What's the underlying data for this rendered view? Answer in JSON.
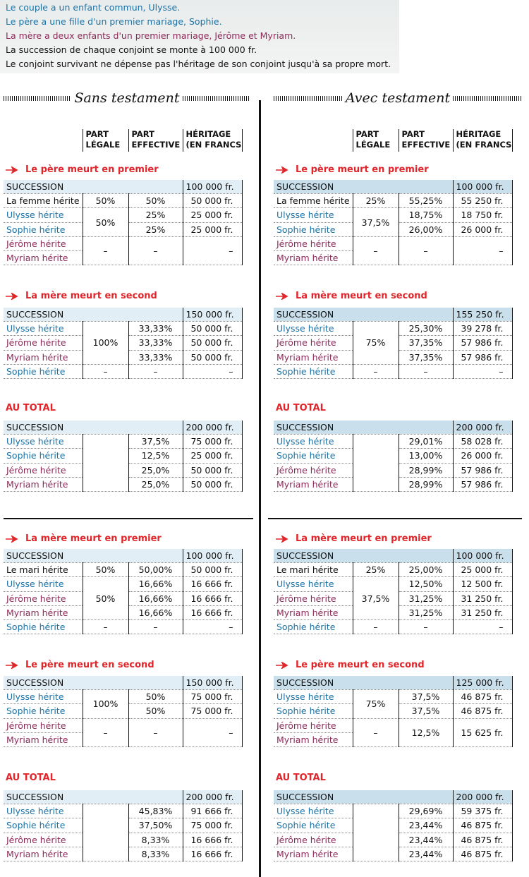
{
  "intro": [
    {
      "text": "Le couple a un enfant commun, Ulysse.",
      "color": "#1a72a6"
    },
    {
      "text": "Le père a une fille d'un premier mariage, Sophie.",
      "color": "#1a72a6"
    },
    {
      "text": "La mère a deux enfants d'un premier mariage, Jérôme et Myriam.",
      "color": "#8c2a5a"
    },
    {
      "text": "La succession de chaque conjoint se monte à 100 000 fr.",
      "color": "#111111"
    },
    {
      "text": "Le conjoint survivant ne dépense pas l'héritage de son conjoint jusqu'à sa propre mort.",
      "color": "#111111"
    }
  ],
  "columns": [
    {
      "title": "Sans testament",
      "header": [
        [
          "PART",
          "LÉGALE"
        ],
        [
          "PART",
          "EFFECTIVE"
        ],
        [
          "HÉRITAGE",
          "(EN FRANCS)"
        ]
      ],
      "succession_color": "#e2eef5",
      "sections": [
        {
          "heading": "Le père meurt en premier",
          "succession": {
            "label": "SUCCESSION",
            "amount": "100 000 fr."
          },
          "rows": [
            [
              "La femme hérite",
              "50%",
              "50%",
              "50 000 fr."
            ],
            [
              "Ulysse hérite",
              "50%",
              "25%",
              "25 000 fr."
            ],
            [
              "Sophie hérite",
              null,
              "25%",
              "25 000 fr."
            ],
            [
              "Jérôme hérite",
              "–",
              "–",
              "–"
            ],
            [
              "Myriam hérite",
              null,
              null,
              null
            ]
          ],
          "row_colors": [
            "#111111",
            "#1a72a6",
            "#1a72a6",
            "#8c2a5a",
            "#8c2a5a"
          ]
        },
        {
          "heading": "La mère meurt en second",
          "succession": {
            "label": "SUCCESSION",
            "amount": "150 000 fr."
          },
          "rows": [
            [
              "Ulysse hérite",
              "100%",
              "33,33%",
              "50 000 fr."
            ],
            [
              "Jérôme hérite",
              null,
              "33,33%",
              "50 000 fr."
            ],
            [
              "Myriam hérite",
              null,
              "33,33%",
              "50 000 fr."
            ],
            [
              "Sophie hérite",
              "–",
              "–",
              "–"
            ]
          ],
          "row_colors": [
            "#1a72a6",
            "#8c2a5a",
            "#8c2a5a",
            "#1a72a6"
          ]
        },
        {
          "heading": "AU TOTAL",
          "succession": {
            "label": "SUCCESSION",
            "amount": "200 000 fr."
          },
          "rows": [
            [
              "Ulysse hérite",
              null,
              "37,5%",
              "75 000 fr."
            ],
            [
              "Sophie hérite",
              null,
              "12,5%",
              "25 000 fr."
            ],
            [
              "Jérôme hérite",
              null,
              "25,0%",
              "50 000 fr."
            ],
            [
              "Myriam hérite",
              null,
              "25,0%",
              "50 000 fr."
            ]
          ],
          "row_colors": [
            "#1a72a6",
            "#1a72a6",
            "#8c2a5a",
            "#8c2a5a"
          ]
        },
        {
          "heading": "La mère meurt en premier",
          "succession": {
            "label": "SUCCESSION",
            "amount": "100 000 fr."
          },
          "rows": [
            [
              "Le mari hérite",
              "50%",
              "50,00%",
              "50 000 fr."
            ],
            [
              "Ulysse hérite",
              "50%",
              "16,66%",
              "16 666 fr."
            ],
            [
              "Jérôme hérite",
              null,
              "16,66%",
              "16 666 fr."
            ],
            [
              "Myriam hérite",
              null,
              "16,66%",
              "16 666 fr."
            ],
            [
              "Sophie hérite",
              "–",
              "–",
              "–"
            ]
          ],
          "row_colors": [
            "#111111",
            "#1a72a6",
            "#8c2a5a",
            "#8c2a5a",
            "#1a72a6"
          ]
        },
        {
          "heading": "Le père meurt en second",
          "succession": {
            "label": "SUCCESSION",
            "amount": "150 000 fr."
          },
          "rows": [
            [
              "Ulysse hérite",
              "100%",
              "50%",
              "75 000 fr."
            ],
            [
              "Sophie hérite",
              null,
              "50%",
              "75 000 fr."
            ],
            [
              "Jérôme hérite",
              "–",
              "–",
              "–"
            ],
            [
              "Myriam hérite",
              null,
              null,
              null
            ]
          ],
          "row_colors": [
            "#1a72a6",
            "#1a72a6",
            "#8c2a5a",
            "#8c2a5a"
          ]
        },
        {
          "heading": "AU TOTAL",
          "succession": {
            "label": "SUCCESSION",
            "amount": "200 000 fr."
          },
          "rows": [
            [
              "Ulysse hérite",
              null,
              "45,83%",
              "91 666 fr."
            ],
            [
              "Sophie hérite",
              null,
              "37,50%",
              "75 000 fr."
            ],
            [
              "Jérôme hérite",
              null,
              "8,33%",
              "16 666 fr."
            ],
            [
              "Myriam hérite",
              null,
              "8,33%",
              "16 666 fr."
            ]
          ],
          "row_colors": [
            "#1a72a6",
            "#1a72a6",
            "#8c2a5a",
            "#8c2a5a"
          ]
        }
      ]
    },
    {
      "title": "Avec testament",
      "header": [
        [
          "PART",
          "LÉGALE"
        ],
        [
          "PART",
          "EFFECTIVE"
        ],
        [
          "HÉRITAGE",
          "(EN FRANCS)"
        ]
      ],
      "succession_color": "#c9dfeb",
      "sections": [
        {
          "heading": "Le père meurt en premier",
          "succession": {
            "label": "SUCCESSION",
            "amount": "100 000 fr."
          },
          "rows": [
            [
              "La femme hérite",
              "25%",
              "55,25%",
              "55 250 fr."
            ],
            [
              "Ulysse hérite",
              "37,5%",
              "18,75%",
              "18 750 fr."
            ],
            [
              "Sophie hérite",
              null,
              "26,00%",
              "26 000 fr."
            ],
            [
              "Jérôme hérite",
              "–",
              "–",
              "–"
            ],
            [
              "Myriam hérite",
              null,
              null,
              null
            ]
          ],
          "row_colors": [
            "#111111",
            "#1a72a6",
            "#1a72a6",
            "#8c2a5a",
            "#8c2a5a"
          ]
        },
        {
          "heading": "La mère meurt en second",
          "succession": {
            "label": "SUCCESSION",
            "amount": "155 250 fr."
          },
          "rows": [
            [
              "Ulysse hérite",
              "75%",
              "25,30%",
              "39 278 fr."
            ],
            [
              "Jérôme hérite",
              null,
              "37,35%",
              "57 986 fr."
            ],
            [
              "Myriam hérite",
              null,
              "37,35%",
              "57 986 fr."
            ],
            [
              "Sophie hérite",
              "–",
              "–",
              "–"
            ]
          ],
          "row_colors": [
            "#1a72a6",
            "#8c2a5a",
            "#8c2a5a",
            "#1a72a6"
          ]
        },
        {
          "heading": "AU TOTAL",
          "succession": {
            "label": "SUCCESSION",
            "amount": "200 000 fr."
          },
          "rows": [
            [
              "Ulysse hérite",
              null,
              "29,01%",
              "58 028 fr."
            ],
            [
              "Sophie hérite",
              null,
              "13,00%",
              "26 000 fr."
            ],
            [
              "Jérôme hérite",
              null,
              "28,99%",
              "57 986 fr."
            ],
            [
              "Myriam hérite",
              null,
              "28,99%",
              "57 986 fr."
            ]
          ],
          "row_colors": [
            "#1a72a6",
            "#1a72a6",
            "#8c2a5a",
            "#8c2a5a"
          ]
        },
        {
          "heading": "La mère meurt en premier",
          "succession": {
            "label": "SUCCESSION",
            "amount": "100 000 fr."
          },
          "rows": [
            [
              "Le mari hérite",
              "25%",
              "25,00%",
              "25 000 fr."
            ],
            [
              "Ulysse hérite",
              "37,5%",
              "12,50%",
              "12 500 fr."
            ],
            [
              "Jérôme hérite",
              null,
              "31,25%",
              "31 250 fr."
            ],
            [
              "Myriam hérite",
              null,
              "31,25%",
              "31 250 fr."
            ],
            [
              "Sophie hérite",
              "–",
              "–",
              "–"
            ]
          ],
          "row_colors": [
            "#111111",
            "#1a72a6",
            "#8c2a5a",
            "#8c2a5a",
            "#1a72a6"
          ]
        },
        {
          "heading": "Le père meurt en second",
          "succession": {
            "label": "SUCCESSION",
            "amount": "125 000 fr."
          },
          "rows": [
            [
              "Ulysse hérite",
              "75%",
              "37,5%",
              "46 875 fr."
            ],
            [
              "Sophie hérite",
              null,
              "37,5%",
              "46 875 fr."
            ],
            [
              "Jérôme hérite",
              "–",
              "12,5%",
              "15 625 fr."
            ],
            [
              "Myriam hérite",
              null,
              null,
              null
            ]
          ],
          "row_colors": [
            "#1a72a6",
            "#1a72a6",
            "#8c2a5a",
            "#8c2a5a"
          ]
        },
        {
          "heading": "AU TOTAL",
          "succession": {
            "label": "SUCCESSION",
            "amount": "200 000 fr."
          },
          "rows": [
            [
              "Ulysse hérite",
              null,
              "29,69%",
              "59 375 fr."
            ],
            [
              "Sophie hérite",
              null,
              "23,44%",
              "46 875 fr."
            ],
            [
              "Jérôme hérite",
              null,
              "23,44%",
              "46 875 fr."
            ],
            [
              "Myriam hérite",
              null,
              "23,44%",
              "46 875 fr."
            ]
          ],
          "row_colors": [
            "#1a72a6",
            "#1a72a6",
            "#8c2a5a",
            "#8c2a5a"
          ]
        }
      ]
    }
  ]
}
